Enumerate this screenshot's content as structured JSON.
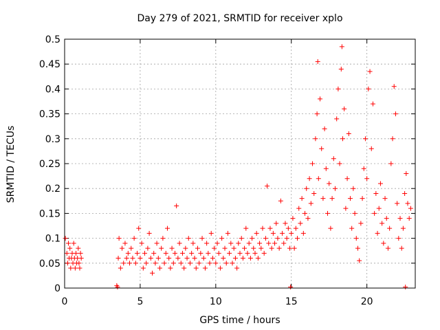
{
  "chart_data": {
    "type": "scatter",
    "title": "Day 279 of 2021, SRMTID for receiver xplo",
    "xlabel": "GPS time / hours",
    "ylabel": "SRMTID / TECUs",
    "xlim": [
      0,
      23.2
    ],
    "ylim": [
      0,
      0.5
    ],
    "x_ticks": [
      "0",
      "5",
      "10",
      "15",
      "20"
    ],
    "y_ticks": [
      "0",
      "0.05",
      "0.1",
      "0.15",
      "0.2",
      "0.25",
      "0.3",
      "0.35",
      "0.4",
      "0.45",
      "0.5"
    ],
    "grid": true,
    "marker": "+",
    "color": "#ff0000",
    "series": [
      {
        "points": [
          [
            0.05,
            0.1
          ],
          [
            0.15,
            0.07
          ],
          [
            0.2,
            0.05
          ],
          [
            0.25,
            0.09
          ],
          [
            0.3,
            0.06
          ],
          [
            0.35,
            0.08
          ],
          [
            0.4,
            0.04
          ],
          [
            0.45,
            0.06
          ],
          [
            0.5,
            0.07
          ],
          [
            0.55,
            0.05
          ],
          [
            0.6,
            0.09
          ],
          [
            0.65,
            0.06
          ],
          [
            0.7,
            0.04
          ],
          [
            0.75,
            0.07
          ],
          [
            0.8,
            0.05
          ],
          [
            0.85,
            0.06
          ],
          [
            0.9,
            0.08
          ],
          [
            0.95,
            0.05
          ],
          [
            1.0,
            0.04
          ],
          [
            1.05,
            0.07
          ],
          [
            1.1,
            0.06
          ],
          [
            3.45,
            0.005
          ],
          [
            3.5,
            0.002
          ],
          [
            3.55,
            0.06
          ],
          [
            3.6,
            0.1
          ],
          [
            3.7,
            0.04
          ],
          [
            3.8,
            0.08
          ],
          [
            3.9,
            0.05
          ],
          [
            4.0,
            0.09
          ],
          [
            4.1,
            0.06
          ],
          [
            4.2,
            0.07
          ],
          [
            4.3,
            0.05
          ],
          [
            4.4,
            0.08
          ],
          [
            4.5,
            0.06
          ],
          [
            4.6,
            0.1
          ],
          [
            4.7,
            0.05
          ],
          [
            4.8,
            0.07
          ],
          [
            4.9,
            0.12
          ],
          [
            5.0,
            0.06
          ],
          [
            5.1,
            0.09
          ],
          [
            5.2,
            0.04
          ],
          [
            5.3,
            0.07
          ],
          [
            5.4,
            0.05
          ],
          [
            5.5,
            0.08
          ],
          [
            5.6,
            0.11
          ],
          [
            5.7,
            0.06
          ],
          [
            5.8,
            0.03
          ],
          [
            5.9,
            0.07
          ],
          [
            6.0,
            0.05
          ],
          [
            6.1,
            0.09
          ],
          [
            6.2,
            0.06
          ],
          [
            6.3,
            0.04
          ],
          [
            6.4,
            0.08
          ],
          [
            6.5,
            0.1
          ],
          [
            6.6,
            0.05
          ],
          [
            6.7,
            0.07
          ],
          [
            6.8,
            0.12
          ],
          [
            6.9,
            0.06
          ],
          [
            7.0,
            0.04
          ],
          [
            7.1,
            0.08
          ],
          [
            7.2,
            0.05
          ],
          [
            7.3,
            0.07
          ],
          [
            7.4,
            0.165
          ],
          [
            7.5,
            0.06
          ],
          [
            7.6,
            0.09
          ],
          [
            7.7,
            0.05
          ],
          [
            7.8,
            0.07
          ],
          [
            7.9,
            0.04
          ],
          [
            8.0,
            0.08
          ],
          [
            8.1,
            0.06
          ],
          [
            8.2,
            0.1
          ],
          [
            8.3,
            0.05
          ],
          [
            8.4,
            0.07
          ],
          [
            8.5,
            0.09
          ],
          [
            8.6,
            0.06
          ],
          [
            8.7,
            0.04
          ],
          [
            8.8,
            0.08
          ],
          [
            8.9,
            0.05
          ],
          [
            9.0,
            0.07
          ],
          [
            9.1,
            0.1
          ],
          [
            9.2,
            0.06
          ],
          [
            9.3,
            0.04
          ],
          [
            9.4,
            0.09
          ],
          [
            9.5,
            0.07
          ],
          [
            9.6,
            0.05
          ],
          [
            9.7,
            0.11
          ],
          [
            9.8,
            0.06
          ],
          [
            9.9,
            0.08
          ],
          [
            10.0,
            0.05
          ],
          [
            10.1,
            0.09
          ],
          [
            10.2,
            0.07
          ],
          [
            10.3,
            0.04
          ],
          [
            10.4,
            0.1
          ],
          [
            10.5,
            0.06
          ],
          [
            10.6,
            0.08
          ],
          [
            10.7,
            0.05
          ],
          [
            10.8,
            0.11
          ],
          [
            10.9,
            0.07
          ],
          [
            11.0,
            0.09
          ],
          [
            11.1,
            0.05
          ],
          [
            11.2,
            0.08
          ],
          [
            11.3,
            0.06
          ],
          [
            11.4,
            0.04
          ],
          [
            11.5,
            0.09
          ],
          [
            11.6,
            0.07
          ],
          [
            11.7,
            0.1
          ],
          [
            11.8,
            0.06
          ],
          [
            11.9,
            0.08
          ],
          [
            12.0,
            0.12
          ],
          [
            12.1,
            0.07
          ],
          [
            12.2,
            0.09
          ],
          [
            12.3,
            0.06
          ],
          [
            12.4,
            0.1
          ],
          [
            12.5,
            0.08
          ],
          [
            12.6,
            0.07
          ],
          [
            12.7,
            0.11
          ],
          [
            12.8,
            0.06
          ],
          [
            12.9,
            0.09
          ],
          [
            13.0,
            0.08
          ],
          [
            13.1,
            0.12
          ],
          [
            13.2,
            0.07
          ],
          [
            13.3,
            0.1
          ],
          [
            13.4,
            0.205
          ],
          [
            13.5,
            0.09
          ],
          [
            13.6,
            0.12
          ],
          [
            13.7,
            0.08
          ],
          [
            13.8,
            0.11
          ],
          [
            13.9,
            0.09
          ],
          [
            14.0,
            0.13
          ],
          [
            14.1,
            0.1
          ],
          [
            14.2,
            0.08
          ],
          [
            14.3,
            0.175
          ],
          [
            14.4,
            0.11
          ],
          [
            14.5,
            0.09
          ],
          [
            14.6,
            0.13
          ],
          [
            14.7,
            0.1
          ],
          [
            14.8,
            0.12
          ],
          [
            14.9,
            0.08
          ],
          [
            14.95,
            0.002
          ],
          [
            15.0,
            0.11
          ],
          [
            15.1,
            0.14
          ],
          [
            15.2,
            0.08
          ],
          [
            15.3,
            0.12
          ],
          [
            15.4,
            0.1
          ],
          [
            15.5,
            0.16
          ],
          [
            15.6,
            0.13
          ],
          [
            15.7,
            0.18
          ],
          [
            15.8,
            0.11
          ],
          [
            15.9,
            0.15
          ],
          [
            16.0,
            0.2
          ],
          [
            16.1,
            0.14
          ],
          [
            16.2,
            0.22
          ],
          [
            16.3,
            0.17
          ],
          [
            16.4,
            0.25
          ],
          [
            16.5,
            0.19
          ],
          [
            16.6,
            0.3
          ],
          [
            16.7,
            0.35
          ],
          [
            16.75,
            0.455
          ],
          [
            16.8,
            0.22
          ],
          [
            16.9,
            0.38
          ],
          [
            17.0,
            0.28
          ],
          [
            17.1,
            0.18
          ],
          [
            17.2,
            0.32
          ],
          [
            17.3,
            0.24
          ],
          [
            17.4,
            0.15
          ],
          [
            17.5,
            0.21
          ],
          [
            17.6,
            0.12
          ],
          [
            17.7,
            0.18
          ],
          [
            17.8,
            0.26
          ],
          [
            17.9,
            0.2
          ],
          [
            18.0,
            0.34
          ],
          [
            18.1,
            0.4
          ],
          [
            18.2,
            0.25
          ],
          [
            18.3,
            0.44
          ],
          [
            18.35,
            0.485
          ],
          [
            18.4,
            0.3
          ],
          [
            18.5,
            0.36
          ],
          [
            18.6,
            0.16
          ],
          [
            18.7,
            0.22
          ],
          [
            18.8,
            0.31
          ],
          [
            18.9,
            0.18
          ],
          [
            19.0,
            0.12
          ],
          [
            19.1,
            0.2
          ],
          [
            19.2,
            0.15
          ],
          [
            19.3,
            0.1
          ],
          [
            19.4,
            0.08
          ],
          [
            19.5,
            0.055
          ],
          [
            19.6,
            0.13
          ],
          [
            19.7,
            0.18
          ],
          [
            19.8,
            0.24
          ],
          [
            19.9,
            0.3
          ],
          [
            20.0,
            0.22
          ],
          [
            20.1,
            0.4
          ],
          [
            20.2,
            0.435
          ],
          [
            20.3,
            0.28
          ],
          [
            20.4,
            0.37
          ],
          [
            20.5,
            0.15
          ],
          [
            20.6,
            0.19
          ],
          [
            20.7,
            0.11
          ],
          [
            20.8,
            0.16
          ],
          [
            20.9,
            0.21
          ],
          [
            21.0,
            0.13
          ],
          [
            21.1,
            0.09
          ],
          [
            21.2,
            0.18
          ],
          [
            21.3,
            0.14
          ],
          [
            21.4,
            0.08
          ],
          [
            21.5,
            0.12
          ],
          [
            21.6,
            0.25
          ],
          [
            21.7,
            0.3
          ],
          [
            21.8,
            0.405
          ],
          [
            21.9,
            0.35
          ],
          [
            22.0,
            0.17
          ],
          [
            22.1,
            0.1
          ],
          [
            22.2,
            0.14
          ],
          [
            22.3,
            0.08
          ],
          [
            22.4,
            0.12
          ],
          [
            22.5,
            0.19
          ],
          [
            22.6,
            0.23
          ],
          [
            22.7,
            0.17
          ],
          [
            22.8,
            0.14
          ],
          [
            22.9,
            0.16
          ],
          [
            22.55,
            0.002
          ]
        ]
      }
    ]
  }
}
